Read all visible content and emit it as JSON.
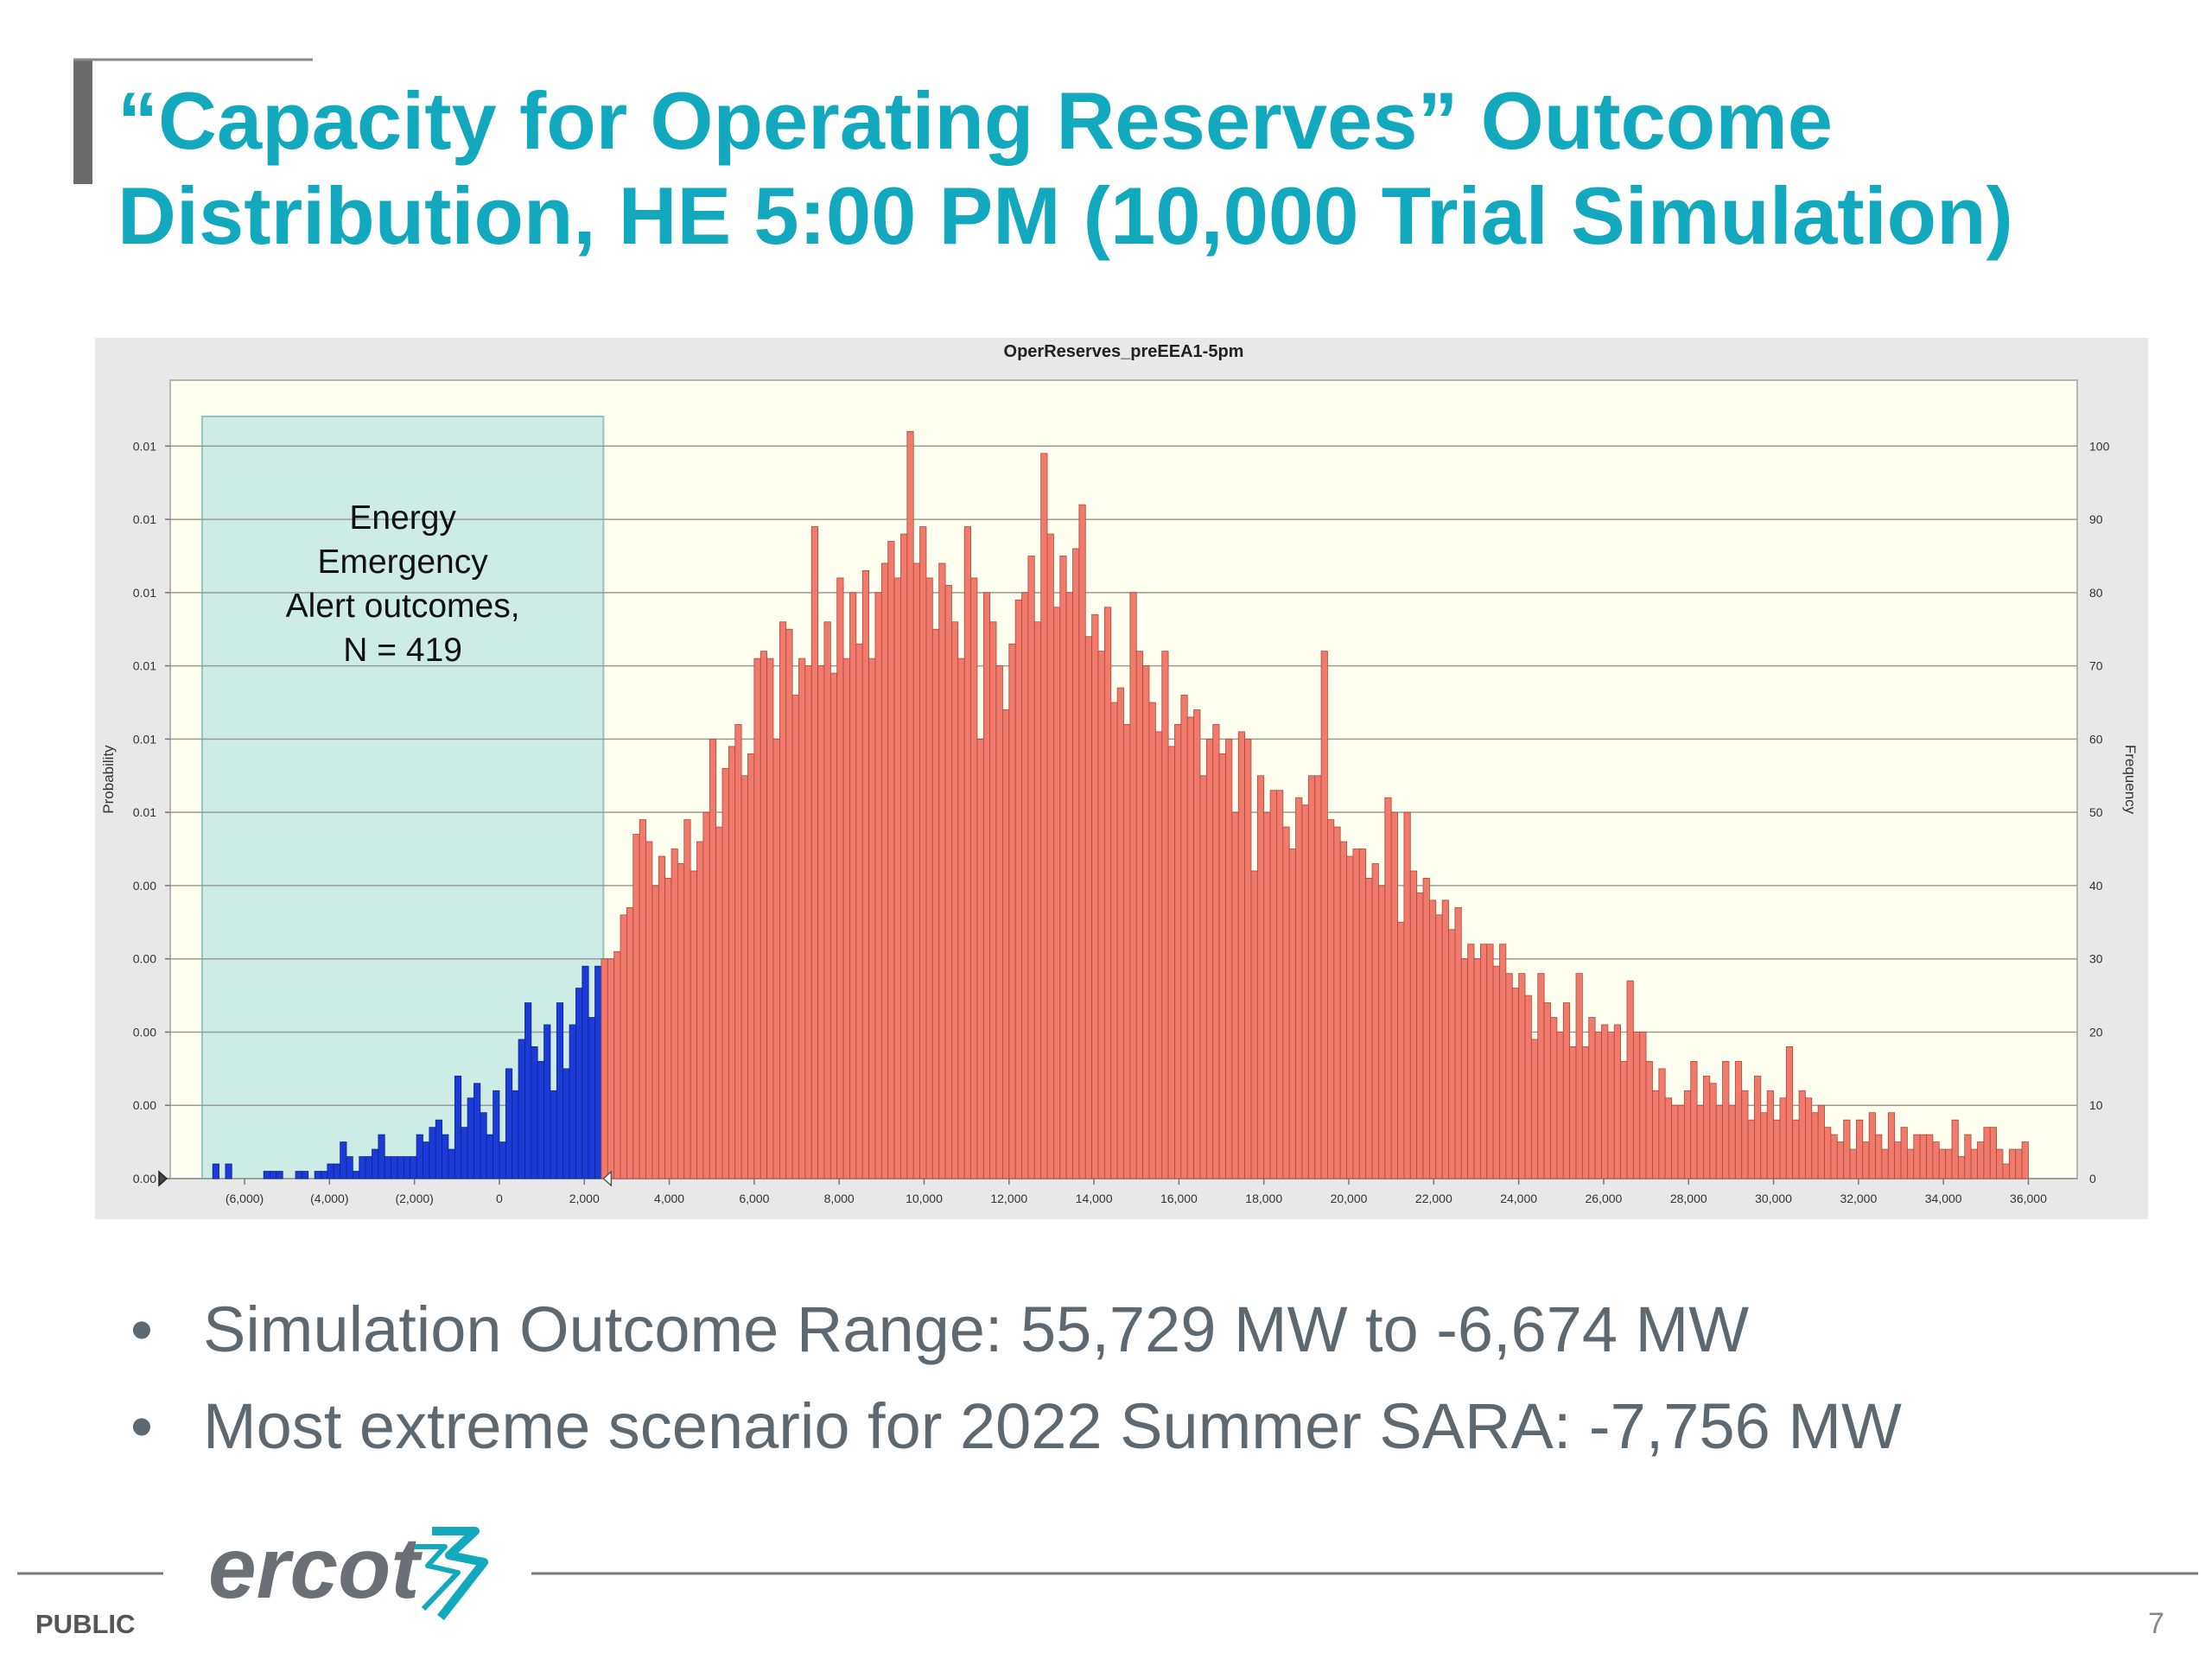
{
  "slide": {
    "title": [
      "“Capacity for Operating Reserves” Outcome",
      "Distribution, HE 5:00 PM (10,000 Trial Simulation)"
    ],
    "bullets": [
      "Simulation Outcome Range: 55,729 MW to -6,674 MW",
      "Most extreme scenario for 2022 Summer SARA: -7,756 MW"
    ],
    "footer": {
      "label": "PUBLIC",
      "page": "7",
      "logo": "ercot"
    }
  },
  "chart_data": {
    "type": "histogram",
    "title": "OperReserves_preEEA1-5pm",
    "ylabel": "Probability",
    "y2label": "Frequency",
    "xlim": [
      -7750,
      37150
    ],
    "ylim": [
      0,
      0.0109
    ],
    "y2lim": [
      0,
      109
    ],
    "grid": true,
    "xticks": [
      {
        "value": -6000,
        "label": "(6,000)"
      },
      {
        "value": -4000,
        "label": "(4,000)"
      },
      {
        "value": -2000,
        "label": "(2,000)"
      },
      0,
      {
        "value": 2000,
        "label": "2,000"
      },
      {
        "value": 4000,
        "label": "4,000"
      },
      {
        "value": 6000,
        "label": "6,000"
      },
      {
        "value": 8000,
        "label": "8,000"
      },
      {
        "value": 10000,
        "label": "10,000"
      },
      {
        "value": 12000,
        "label": "12,000"
      },
      {
        "value": 14000,
        "label": "14,000"
      },
      {
        "value": 16000,
        "label": "16,000"
      },
      {
        "value": 18000,
        "label": "18,000"
      },
      {
        "value": 20000,
        "label": "20,000"
      },
      {
        "value": 22000,
        "label": "22,000"
      },
      {
        "value": 24000,
        "label": "24,000"
      },
      {
        "value": 26000,
        "label": "26,000"
      },
      {
        "value": 28000,
        "label": "28,000"
      },
      {
        "value": 30000,
        "label": "30,000"
      },
      {
        "value": 32000,
        "label": "32,000"
      },
      {
        "value": 34000,
        "label": "34,000"
      },
      {
        "value": 36000,
        "label": "36,000"
      }
    ],
    "yticks": [
      {
        "value": 0,
        "label": "0.00"
      },
      {
        "value": 0.001,
        "label": "0.00"
      },
      {
        "value": 0.002,
        "label": "0.00"
      },
      {
        "value": 0.003,
        "label": "0.00"
      },
      {
        "value": 0.004,
        "label": "0.00"
      },
      {
        "value": 0.005,
        "label": "0.01"
      },
      {
        "value": 0.006,
        "label": "0.01"
      },
      {
        "value": 0.007,
        "label": "0.01"
      },
      {
        "value": 0.008,
        "label": "0.01"
      },
      {
        "value": 0.009,
        "label": "0.01"
      },
      0.01
    ],
    "y2ticks": [
      0,
      10,
      20,
      30,
      40,
      50,
      60,
      70,
      80,
      90,
      100
    ],
    "highlight": {
      "x": [
        -7000,
        2450
      ],
      "fill": "#cdece6",
      "stroke": "#8fc7bd",
      "bar_color": "#1a3bd6",
      "label": [
        "Energy",
        "Emergency",
        "Alert outcomes,",
        "N = 419"
      ]
    },
    "bins": [
      -6750,
      -6600,
      -6450,
      -6300,
      -6150,
      -6000,
      -5850,
      -5700,
      -5550,
      -5400,
      -5250,
      -5100,
      -4950,
      -4800,
      -4650,
      -4500,
      -4350,
      -4200,
      -4050,
      -3900,
      -3750,
      -3600,
      -3450,
      -3300,
      -3150,
      -3000,
      -2850,
      -2700,
      -2550,
      -2400,
      -2250,
      -2100,
      -1950,
      -1800,
      -1650,
      -1500,
      -1350,
      -1200,
      -1050,
      -900,
      -750,
      -600,
      -450,
      -300,
      -150,
      0,
      150,
      300,
      450,
      600,
      750,
      900,
      1050,
      1200,
      1350,
      1500,
      1650,
      1800,
      1950,
      2100,
      2250,
      2400,
      2550,
      2700,
      2850,
      3000,
      3150,
      3300,
      3450,
      3600,
      3750,
      3900,
      4050,
      4200,
      4350,
      4500,
      4650,
      4800,
      4950,
      5100,
      5250,
      5400,
      5550,
      5700,
      5850,
      6000,
      6150,
      6300,
      6450,
      6600,
      6750,
      6900,
      7050,
      7200,
      7350,
      7500,
      7650,
      7800,
      7950,
      8100,
      8250,
      8400,
      8550,
      8700,
      8850,
      9000,
      9150,
      9300,
      9450,
      9600,
      9750,
      9900,
      10050,
      10200,
      10350,
      10500,
      10650,
      10800,
      10950,
      11100,
      11250,
      11400,
      11550,
      11700,
      11850,
      12000,
      12150,
      12300,
      12450,
      12600,
      12750,
      12900,
      13050,
      13200,
      13350,
      13500,
      13650,
      13800,
      13950,
      14100,
      14250,
      14400,
      14550,
      14700,
      14850,
      15000,
      15150,
      15300,
      15450,
      15600,
      15750,
      15900,
      16050,
      16200,
      16350,
      16500,
      16650,
      16800,
      16950,
      17100,
      17250,
      17400,
      17550,
      17700,
      17850,
      18000,
      18150,
      18300,
      18450,
      18600,
      18750,
      18900,
      19050,
      19200,
      19350,
      19500,
      19650,
      19800,
      19950,
      20100,
      20250,
      20400,
      20550,
      20700,
      20850,
      21000,
      21150,
      21300,
      21450,
      21600,
      21750,
      21900,
      22050,
      22200,
      22350,
      22500,
      22650,
      22800,
      22950,
      23100,
      23250,
      23400,
      23550,
      23700,
      23850,
      24000,
      24150,
      24300,
      24450,
      24600,
      24750,
      24900,
      25050,
      25200,
      25350,
      25500,
      25650,
      25800,
      25950,
      26100,
      26250,
      26400,
      26550,
      26700,
      26850,
      27000,
      27150,
      27300,
      27450,
      27600,
      27750,
      27900,
      28050,
      28200,
      28350,
      28500,
      28650,
      28800,
      28950,
      29100,
      29250,
      29400,
      29550,
      29700,
      29850,
      30000,
      30150,
      30300,
      30450,
      30600,
      30750,
      30900,
      31050,
      31200,
      31350,
      31500,
      31650,
      31800,
      31950,
      32100,
      32250,
      32400,
      32550,
      32700,
      32850,
      33000,
      33150,
      33300,
      33450,
      33600,
      33750,
      33900,
      34050,
      34200,
      34350,
      34500,
      34650,
      34800,
      34950,
      35100,
      35250,
      35400,
      35550,
      35700,
      35850,
      36000
    ],
    "series": [
      {
        "axis": "y2",
        "color": "#f07a6b",
        "stroke": "#b4453a",
        "values": [
          2,
          0,
          2,
          0,
          0,
          0,
          0,
          0,
          1,
          1,
          1,
          0,
          0,
          1,
          1,
          0,
          1,
          1,
          2,
          2,
          5,
          3,
          1,
          3,
          3,
          4,
          6,
          3,
          3,
          3,
          3,
          3,
          6,
          5,
          7,
          8,
          6,
          4,
          14,
          7,
          11,
          13,
          9,
          6,
          12,
          5,
          15,
          12,
          19,
          24,
          18,
          16,
          21,
          12,
          24,
          15,
          21,
          26,
          29,
          22,
          29,
          30,
          30,
          31,
          36,
          37,
          47,
          49,
          46,
          40,
          44,
          41,
          45,
          43,
          49,
          42,
          46,
          50,
          60,
          48,
          56,
          59,
          62,
          55,
          58,
          71,
          72,
          71,
          60,
          76,
          75,
          66,
          71,
          70,
          89,
          70,
          76,
          69,
          82,
          71,
          80,
          73,
          83,
          71,
          80,
          84,
          87,
          82,
          88,
          102,
          84,
          89,
          82,
          75,
          84,
          81,
          76,
          71,
          89,
          82,
          60,
          80,
          76,
          70,
          64,
          73,
          79,
          80,
          85,
          76,
          99,
          88,
          78,
          85,
          80,
          86,
          92,
          74,
          77,
          72,
          78,
          65,
          67,
          62,
          80,
          72,
          70,
          65,
          61,
          72,
          59,
          62,
          66,
          63,
          64,
          55,
          60,
          62,
          58,
          60,
          50,
          61,
          60,
          42,
          55,
          50,
          53,
          53,
          48,
          45,
          52,
          51,
          55,
          55,
          72,
          49,
          48,
          46,
          44,
          45,
          45,
          41,
          43,
          40,
          52,
          50,
          35,
          50,
          42,
          39,
          41,
          38,
          36,
          38,
          34,
          37,
          30,
          32,
          30,
          32,
          32,
          29,
          32,
          28,
          26,
          28,
          25,
          19,
          28,
          24,
          22,
          20,
          24,
          18,
          28,
          18,
          22,
          20,
          21,
          20,
          21,
          16,
          27,
          20,
          20,
          16,
          12,
          15,
          11,
          10,
          10,
          12,
          16,
          10,
          14,
          13,
          10,
          16,
          10,
          16,
          12,
          8,
          14,
          9,
          12,
          8,
          11,
          18,
          8,
          12,
          11,
          9,
          10,
          7,
          6,
          5,
          8,
          4,
          8,
          5,
          9,
          6,
          4,
          9,
          5,
          7,
          4,
          6,
          6,
          6,
          5,
          4,
          4,
          8,
          3,
          6,
          4,
          5,
          7,
          7,
          4,
          2,
          4,
          4,
          5
        ]
      }
    ]
  }
}
